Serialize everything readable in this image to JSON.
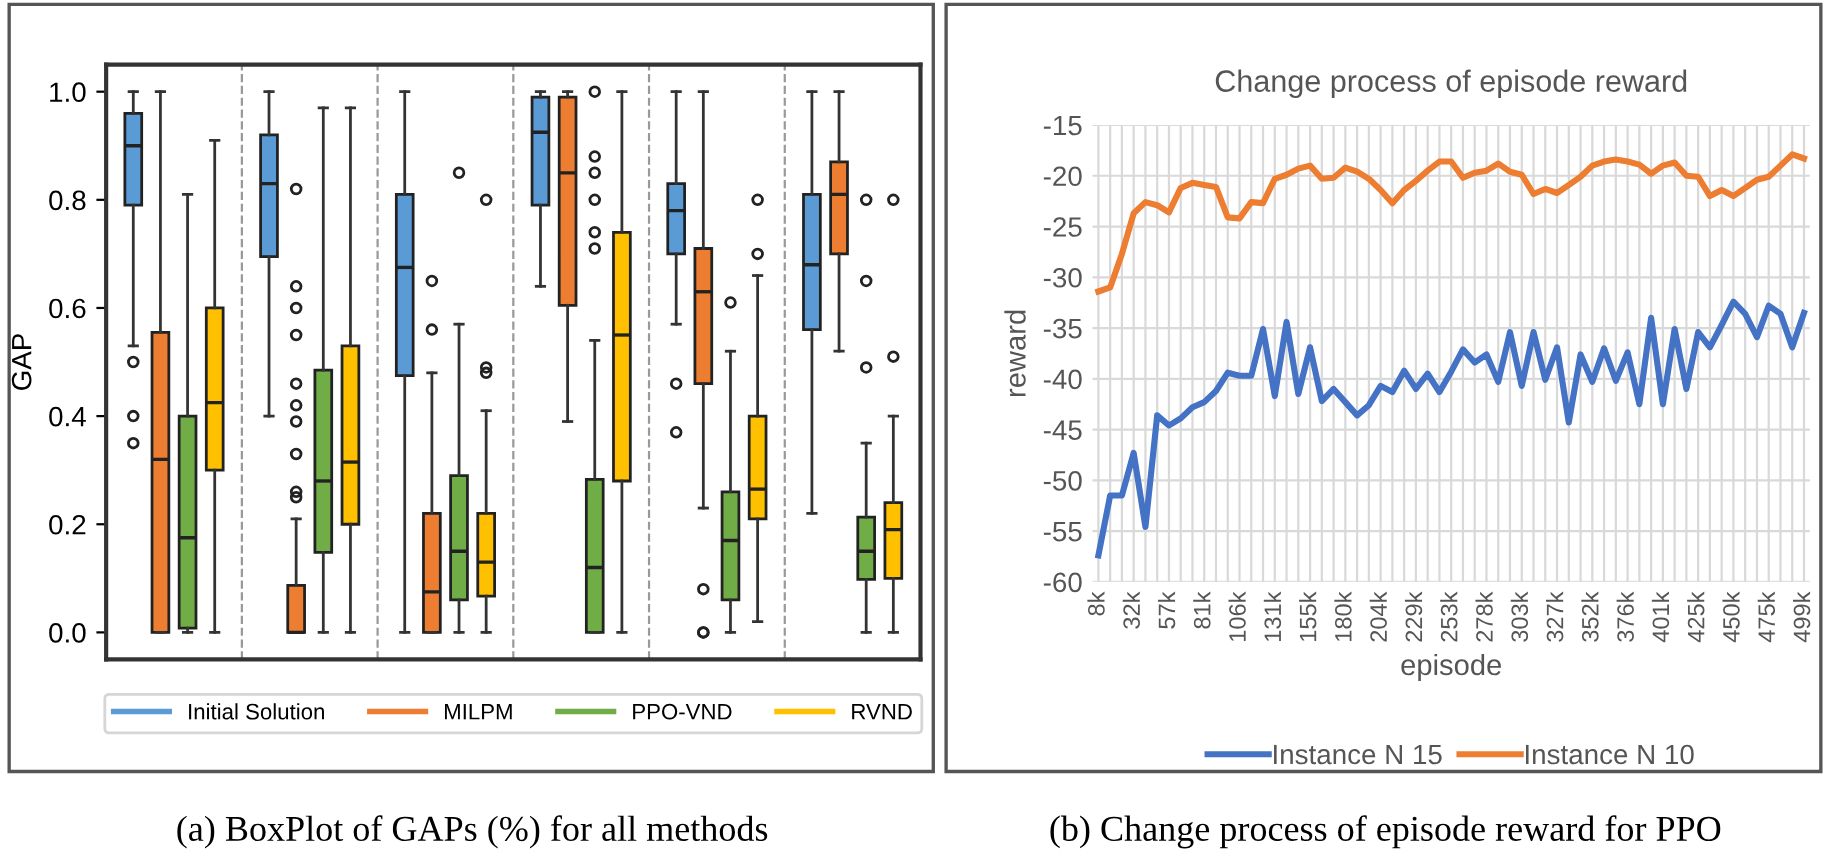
{
  "chart_data": [
    {
      "type": "box",
      "categories": [
        null,
        null,
        null,
        null,
        null,
        null
      ],
      "ylabel": "GAP",
      "ylim": [
        -0.05,
        1.05
      ],
      "yticks": [
        {
          "value": 0,
          "label": "0.0"
        },
        0.2,
        0.4,
        0.6,
        0.8,
        {
          "value": 1,
          "label": "1.0"
        }
      ],
      "tick_labels": "y",
      "grid": false,
      "legend": "bottom",
      "annotations": [
        "(a) BoxPlot of GAPs (%) for all methods"
      ],
      "series": [
        {
          "name": "Initial Solution",
          "color": "#5b9bd5",
          "boxes": [
            {
              "low": 0.53,
              "q1": 0.79,
              "median": 0.9,
              "q3": 0.96,
              "high": 1.0,
              "outliers": [
                0.5,
                0.4,
                0.35
              ]
            },
            {
              "low": 0.4,
              "q1": 0.695,
              "median": 0.83,
              "q3": 0.92,
              "high": 1.0
            },
            {
              "low": 0,
              "q1": 0.475,
              "median": 0.675,
              "q3": 0.81,
              "high": 1.0
            },
            {
              "low": 0.64,
              "q1": 0.79,
              "median": 0.925,
              "q3": 0.99,
              "high": 1.0
            },
            {
              "low": 0.57,
              "q1": 0.7,
              "median": 0.78,
              "q3": 0.83,
              "high": 1.0,
              "outliers": [
                0.46,
                0.37
              ]
            },
            {
              "low": 0.22,
              "q1": 0.56,
              "median": 0.68,
              "q3": 0.81,
              "high": 1.0
            }
          ]
        },
        {
          "name": "MILPM",
          "color": "#ed7d31",
          "boxes": [
            {
              "low": 0,
              "q1": 0,
              "median": 0.32,
              "q3": 0.555,
              "high": 1.0
            },
            {
              "low": 0,
              "q1": 0,
              "median": 0,
              "q3": 0.087,
              "high": 0.21,
              "outliers": [
                0.82,
                0.64,
                0.6,
                0.55,
                0.46,
                0.42,
                0.39,
                0.33,
                0.26,
                0.25
              ]
            },
            {
              "low": 0,
              "q1": 0,
              "median": 0.075,
              "q3": 0.22,
              "high": 0.48,
              "outliers": [
                0.65,
                0.56
              ]
            },
            {
              "low": 0.39,
              "q1": 0.605,
              "median": 0.85,
              "q3": 0.99,
              "high": 1.0
            },
            {
              "low": 0.23,
              "q1": 0.46,
              "median": 0.63,
              "q3": 0.71,
              "high": 1.0,
              "outliers": [
                0.08,
                0.0,
                0.0
              ]
            },
            {
              "low": 0.52,
              "q1": 0.7,
              "median": 0.81,
              "q3": 0.87,
              "high": 1.0
            }
          ]
        },
        {
          "name": "PPO-VND",
          "color": "#70ad47",
          "boxes": [
            {
              "low": 0,
              "q1": 0.008,
              "median": 0.175,
              "q3": 0.4,
              "high": 0.81
            },
            {
              "low": 0,
              "q1": 0.148,
              "median": 0.28,
              "q3": 0.485,
              "high": 0.97
            },
            {
              "low": 0,
              "q1": 0.06,
              "median": 0.15,
              "q3": 0.29,
              "high": 0.57,
              "outliers": [
                0.85
              ]
            },
            {
              "low": 0,
              "q1": 0,
              "median": 0.12,
              "q3": 0.283,
              "high": 0.54,
              "outliers": [
                1.0,
                0.88,
                0.85,
                0.8,
                0.74,
                0.71
              ]
            },
            {
              "low": 0,
              "q1": 0.06,
              "median": 0.17,
              "q3": 0.26,
              "high": 0.52,
              "outliers": [
                0.61
              ]
            },
            {
              "low": 0,
              "q1": 0.098,
              "median": 0.15,
              "q3": 0.213,
              "high": 0.35,
              "outliers": [
                0.8,
                0.65,
                0.49
              ]
            }
          ]
        },
        {
          "name": "RVND",
          "color": "#ffc000",
          "boxes": [
            {
              "low": 0,
              "q1": 0.3,
              "median": 0.425,
              "q3": 0.6,
              "high": 0.91
            },
            {
              "low": 0,
              "q1": 0.2,
              "median": 0.315,
              "q3": 0.53,
              "high": 0.97
            },
            {
              "low": 0,
              "q1": 0.067,
              "median": 0.13,
              "q3": 0.22,
              "high": 0.41,
              "outliers": [
                0.8,
                0.49,
                0.48
              ]
            },
            {
              "low": 0,
              "q1": 0.28,
              "median": 0.55,
              "q3": 0.74,
              "high": 1.0
            },
            {
              "low": 0.02,
              "q1": 0.21,
              "median": 0.265,
              "q3": 0.4,
              "high": 0.66,
              "outliers": [
                0.8,
                0.7
              ]
            },
            {
              "low": 0,
              "q1": 0.1,
              "median": 0.19,
              "q3": 0.24,
              "high": 0.4,
              "outliers": [
                0.8,
                0.51
              ]
            }
          ]
        }
      ]
    },
    {
      "type": "line",
      "title": "Change process of episode reward",
      "xlabel": "episode",
      "ylabel": "reward",
      "categories": [
        "8k",
        null,
        null,
        "32k",
        null,
        null,
        "57k",
        null,
        null,
        "81k",
        null,
        null,
        "106k",
        null,
        null,
        "131k",
        null,
        null,
        "155k",
        null,
        null,
        "180k",
        null,
        null,
        "204k",
        null,
        null,
        "229k",
        null,
        null,
        "253k",
        null,
        null,
        "278k",
        null,
        null,
        "303k",
        null,
        null,
        "327k",
        null,
        null,
        "352k",
        null,
        null,
        "376k",
        null,
        null,
        "401k",
        null,
        null,
        "425k",
        null,
        null,
        "450k",
        null,
        null,
        "475k",
        null,
        null,
        "499k"
      ],
      "ylim": [
        -60,
        -15
      ],
      "yticks": [
        -60,
        -55,
        -50,
        -45,
        -40,
        -35,
        -30,
        -25,
        -20,
        -15
      ],
      "grid": true,
      "legend": "bottom",
      "marker": "none",
      "line_style": "solid",
      "annotations": [
        "(b) Change process of episode reward for PPO"
      ],
      "series": [
        {
          "name": "Instance N 15",
          "color": "#4472c4",
          "values": [
            -57.4,
            -51.5,
            -51.5,
            -47.3,
            -54.6,
            -43.6,
            -44.6,
            -43.9,
            -42.8,
            -42.3,
            -41.2,
            -39.4,
            -39.7,
            -39.7,
            -35.1,
            -41.7,
            -34.4,
            -41.5,
            -36.9,
            -42.2,
            -41.0,
            -42.3,
            -43.6,
            -42.6,
            -40.7,
            -41.3,
            -39.2,
            -41.0,
            -39.5,
            -41.3,
            -39.3,
            -37.1,
            -38.4,
            -37.6,
            -40.3,
            -35.4,
            -40.7,
            -35.4,
            -40.1,
            -36.9,
            -44.3,
            -37.6,
            -40.3,
            -37.0,
            -40.2,
            -37.4,
            -42.5,
            -34.0,
            -42.5,
            -35.1,
            -41.0,
            -35.4,
            -36.9,
            -34.7,
            -32.4,
            -33.6,
            -35.9,
            -32.8,
            -33.6,
            -36.9,
            -33.5
          ]
        },
        {
          "name": "Instance N 10",
          "color": "#ed7d31",
          "values": [
            -31.4,
            -31.0,
            -27.7,
            -23.7,
            -22.6,
            -22.9,
            -23.6,
            -21.2,
            -20.7,
            -20.9,
            -21.1,
            -24.1,
            -24.2,
            -22.6,
            -22.7,
            -20.3,
            -19.9,
            -19.3,
            -19.0,
            -20.3,
            -20.2,
            -19.2,
            -19.6,
            -20.3,
            -21.4,
            -22.7,
            -21.4,
            -20.5,
            -19.5,
            -18.6,
            -18.6,
            -20.2,
            -19.7,
            -19.5,
            -18.8,
            -19.6,
            -19.9,
            -21.8,
            -21.3,
            -21.7,
            -20.9,
            -20.1,
            -19.0,
            -18.6,
            -18.4,
            -18.6,
            -18.9,
            -19.8,
            -19.0,
            -18.7,
            -20.0,
            -20.1,
            -22.0,
            -21.4,
            -22.0,
            -21.2,
            -20.4,
            -20.1,
            -19.0,
            -17.9,
            -18.3
          ]
        }
      ]
    }
  ]
}
